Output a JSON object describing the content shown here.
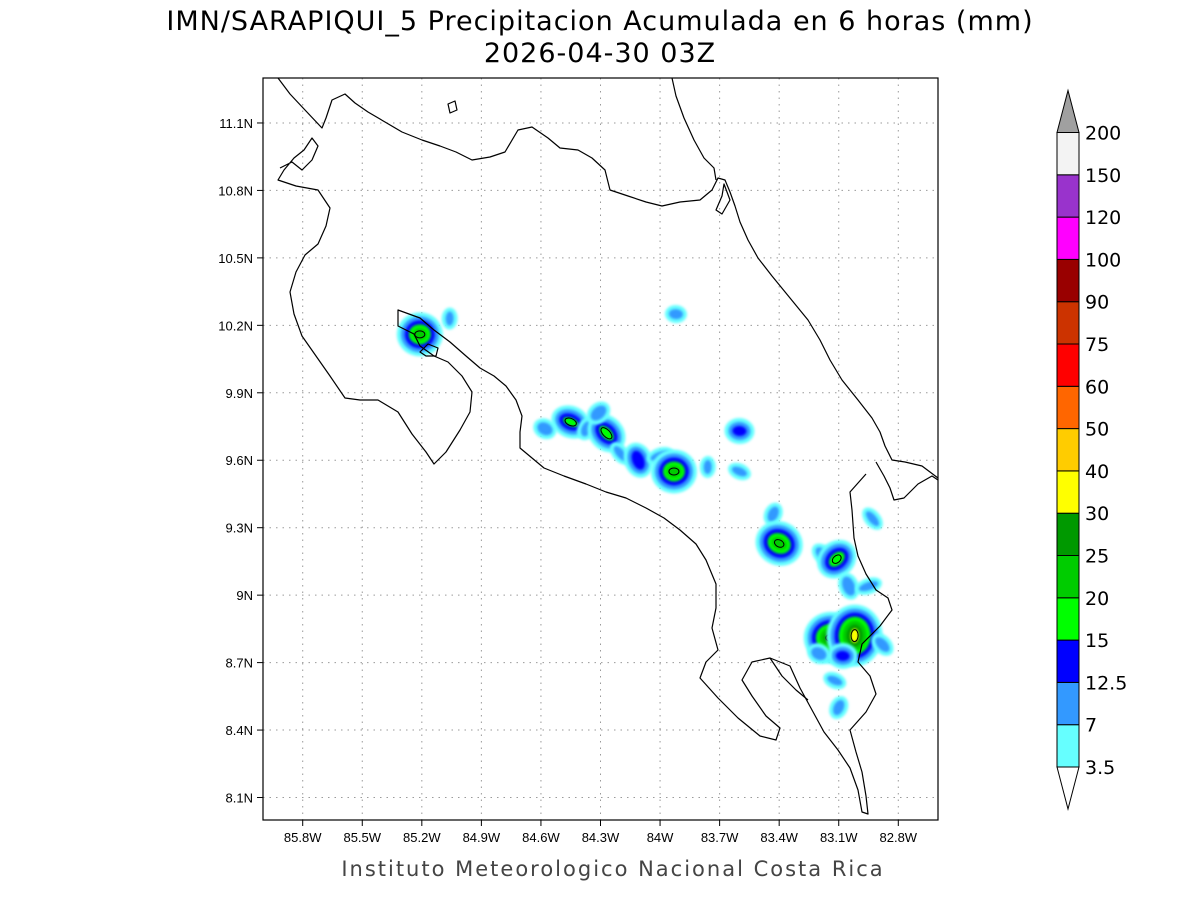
{
  "title": {
    "line1": "IMN/SARAPIQUI_5 Precipitacion Acumulada en 6 horas (mm)",
    "line2": "2026-04-30 03Z"
  },
  "credit": "Instituto Meteorologico Nacional Costa Rica",
  "axes": {
    "lon_range": [
      -86.0,
      -82.6
    ],
    "lat_range": [
      8.0,
      11.3
    ],
    "x_ticks": [
      {
        "value": -85.8,
        "label": "85.8W"
      },
      {
        "value": -85.5,
        "label": "85.5W"
      },
      {
        "value": -85.2,
        "label": "85.2W"
      },
      {
        "value": -84.9,
        "label": "84.9W"
      },
      {
        "value": -84.6,
        "label": "84.6W"
      },
      {
        "value": -84.3,
        "label": "84.3W"
      },
      {
        "value": -84.0,
        "label": "84W"
      },
      {
        "value": -83.7,
        "label": "83.7W"
      },
      {
        "value": -83.4,
        "label": "83.4W"
      },
      {
        "value": -83.1,
        "label": "83.1W"
      },
      {
        "value": -82.8,
        "label": "82.8W"
      }
    ],
    "y_ticks": [
      {
        "value": 11.1,
        "label": "11.1N"
      },
      {
        "value": 10.8,
        "label": "10.8N"
      },
      {
        "value": 10.5,
        "label": "10.5N"
      },
      {
        "value": 10.2,
        "label": "10.2N"
      },
      {
        "value": 9.9,
        "label": "9.9N"
      },
      {
        "value": 9.6,
        "label": "9.6N"
      },
      {
        "value": 9.3,
        "label": "9.3N"
      },
      {
        "value": 9.0,
        "label": "9N"
      },
      {
        "value": 8.7,
        "label": "8.7N"
      },
      {
        "value": 8.4,
        "label": "8.4N"
      },
      {
        "value": 8.1,
        "label": "8.1N"
      }
    ],
    "grid": "dotted"
  },
  "colorbar": {
    "position": "right",
    "levels": [
      "3.5",
      "7",
      "12.5",
      "15",
      "20",
      "25",
      "30",
      "40",
      "50",
      "60",
      "75",
      "90",
      "100",
      "120",
      "150",
      "200"
    ],
    "colors": [
      "#66ffff",
      "#3399ff",
      "#0000ff",
      "#00ff00",
      "#00cc00",
      "#009900",
      "#ffff00",
      "#ffcc00",
      "#ff6600",
      "#ff0000",
      "#cc3300",
      "#990000",
      "#ff00ff",
      "#9933cc",
      "#f3f3f3"
    ],
    "over_color": "#a0a0a0",
    "under_color": "#ffffff"
  },
  "precip_cells": [
    {
      "lon": -85.21,
      "lat": 10.16,
      "level": 4
    },
    {
      "lon": -85.06,
      "lat": 10.23,
      "level": 1
    },
    {
      "lon": -83.92,
      "lat": 10.25,
      "level": 1
    },
    {
      "lon": -84.45,
      "lat": 9.77,
      "level": 3
    },
    {
      "lon": -84.37,
      "lat": 9.74,
      "level": 1
    },
    {
      "lon": -84.58,
      "lat": 9.74,
      "level": 1
    },
    {
      "lon": -84.27,
      "lat": 9.72,
      "level": 3
    },
    {
      "lon": -84.31,
      "lat": 9.81,
      "level": 1
    },
    {
      "lon": -84.2,
      "lat": 9.63,
      "level": 1
    },
    {
      "lon": -84.11,
      "lat": 9.6,
      "level": 2
    },
    {
      "lon": -84.0,
      "lat": 9.62,
      "level": 1
    },
    {
      "lon": -83.93,
      "lat": 9.55,
      "level": 4
    },
    {
      "lon": -83.76,
      "lat": 9.57,
      "level": 1
    },
    {
      "lon": -83.6,
      "lat": 9.73,
      "level": 2
    },
    {
      "lon": -83.6,
      "lat": 9.55,
      "level": 1
    },
    {
      "lon": -83.43,
      "lat": 9.36,
      "level": 1
    },
    {
      "lon": -83.4,
      "lat": 9.23,
      "level": 4
    },
    {
      "lon": -83.18,
      "lat": 9.18,
      "level": 1
    },
    {
      "lon": -83.11,
      "lat": 9.16,
      "level": 3
    },
    {
      "lon": -82.93,
      "lat": 9.34,
      "level": 1
    },
    {
      "lon": -83.05,
      "lat": 9.04,
      "level": 1
    },
    {
      "lon": -82.95,
      "lat": 9.04,
      "level": 1
    },
    {
      "lon": -83.14,
      "lat": 8.81,
      "level": 5
    },
    {
      "lon": -83.02,
      "lat": 8.82,
      "level": 6
    },
    {
      "lon": -83.08,
      "lat": 8.73,
      "level": 2
    },
    {
      "lon": -83.12,
      "lat": 8.62,
      "level": 1
    },
    {
      "lon": -83.1,
      "lat": 8.5,
      "level": 1
    },
    {
      "lon": -83.2,
      "lat": 8.74,
      "level": 1
    },
    {
      "lon": -82.88,
      "lat": 8.78,
      "level": 1
    }
  ]
}
